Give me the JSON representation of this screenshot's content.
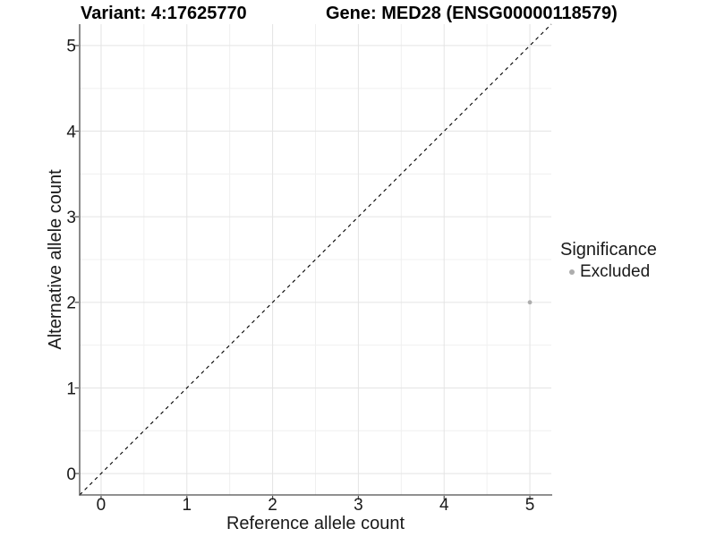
{
  "chart_data": {
    "type": "scatter",
    "title_left": "Variant: 4:17625770",
    "title_right": "Gene: MED28 (ENSG00000118579)",
    "xlabel": "Reference allele count",
    "ylabel": "Alternative allele count",
    "xlim": [
      -0.25,
      5.25
    ],
    "ylim": [
      -0.25,
      5.25
    ],
    "x_ticks": [
      0,
      1,
      2,
      3,
      4,
      5
    ],
    "y_ticks": [
      0,
      1,
      2,
      3,
      4,
      5
    ],
    "minor_grid_step": 0.5,
    "grid": "major+minor",
    "series": [
      {
        "name": "Excluded",
        "color": "#adadad",
        "points": [
          {
            "x": 5,
            "y": 2
          }
        ]
      }
    ],
    "reference_line": {
      "kind": "identity",
      "slope": 1,
      "intercept": 0,
      "style": "dashed",
      "color": "#000000"
    },
    "legend": {
      "title": "Significance",
      "position": "right",
      "items": [
        {
          "label": "Excluded",
          "color": "#adadad"
        }
      ]
    },
    "colors": {
      "background": "#ffffff",
      "grid_major": "#e4e4e4",
      "grid_minor": "#f0f0f0",
      "axis_line": "#4d4d4d",
      "tick": "#4d4d4d",
      "text": "#1a1a1a"
    }
  }
}
